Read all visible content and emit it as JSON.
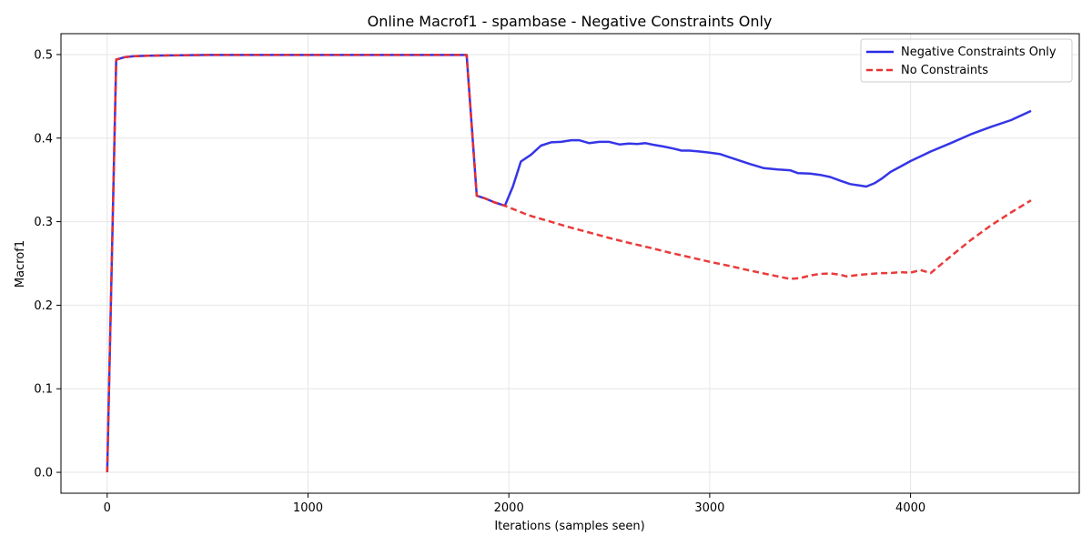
{
  "chart_data": {
    "type": "line",
    "title": "Online Macrof1 - spambase - Negative Constraints Only",
    "xlabel": "Iterations (samples seen)",
    "ylabel": "Macrof1",
    "xlim": [
      -230,
      4840
    ],
    "ylim": [
      -0.025,
      0.525
    ],
    "xticks": [
      0,
      1000,
      2000,
      3000,
      4000
    ],
    "xtick_labels": [
      "0",
      "1000",
      "2000",
      "3000",
      "4000"
    ],
    "yticks": [
      0.0,
      0.1,
      0.2,
      0.3,
      0.4,
      0.5
    ],
    "ytick_labels": [
      "0.0",
      "0.1",
      "0.2",
      "0.3",
      "0.4",
      "0.5"
    ],
    "grid": true,
    "legend_position": "top-right",
    "series": [
      {
        "name": "Negative Constraints Only",
        "color": "#2a2ae6",
        "style": "solid",
        "points": [
          [
            0,
            0.0
          ],
          [
            45,
            0.494
          ],
          [
            90,
            0.497
          ],
          [
            135,
            0.498
          ],
          [
            200,
            0.4985
          ],
          [
            300,
            0.499
          ],
          [
            500,
            0.4995
          ],
          [
            800,
            0.4995
          ],
          [
            1200,
            0.4995
          ],
          [
            1600,
            0.4995
          ],
          [
            1790,
            0.4995
          ],
          [
            1840,
            0.331
          ],
          [
            1880,
            0.328
          ],
          [
            1930,
            0.323
          ],
          [
            1980,
            0.319
          ],
          [
            2020,
            0.342
          ],
          [
            2060,
            0.372
          ],
          [
            2110,
            0.38
          ],
          [
            2160,
            0.391
          ],
          [
            2210,
            0.395
          ],
          [
            2260,
            0.3955
          ],
          [
            2310,
            0.3975
          ],
          [
            2350,
            0.3975
          ],
          [
            2400,
            0.394
          ],
          [
            2450,
            0.3955
          ],
          [
            2500,
            0.3955
          ],
          [
            2550,
            0.3925
          ],
          [
            2600,
            0.3935
          ],
          [
            2640,
            0.393
          ],
          [
            2680,
            0.394
          ],
          [
            2720,
            0.392
          ],
          [
            2770,
            0.39
          ],
          [
            2820,
            0.3875
          ],
          [
            2860,
            0.385
          ],
          [
            2900,
            0.385
          ],
          [
            2950,
            0.384
          ],
          [
            3000,
            0.3825
          ],
          [
            3050,
            0.381
          ],
          [
            3100,
            0.377
          ],
          [
            3150,
            0.373
          ],
          [
            3200,
            0.369
          ],
          [
            3270,
            0.364
          ],
          [
            3340,
            0.3625
          ],
          [
            3400,
            0.3615
          ],
          [
            3440,
            0.358
          ],
          [
            3500,
            0.3575
          ],
          [
            3550,
            0.356
          ],
          [
            3600,
            0.3535
          ],
          [
            3650,
            0.349
          ],
          [
            3700,
            0.345
          ],
          [
            3740,
            0.3435
          ],
          [
            3780,
            0.342
          ],
          [
            3820,
            0.346
          ],
          [
            3860,
            0.352
          ],
          [
            3900,
            0.3595
          ],
          [
            3950,
            0.366
          ],
          [
            4000,
            0.3725
          ],
          [
            4100,
            0.384
          ],
          [
            4200,
            0.394
          ],
          [
            4300,
            0.4045
          ],
          [
            4400,
            0.4135
          ],
          [
            4500,
            0.4215
          ],
          [
            4600,
            0.4325
          ]
        ]
      },
      {
        "name": "No Constraints",
        "color": "#e83030",
        "style": "dashed",
        "points": [
          [
            0,
            0.0
          ],
          [
            45,
            0.494
          ],
          [
            90,
            0.497
          ],
          [
            135,
            0.498
          ],
          [
            200,
            0.4985
          ],
          [
            300,
            0.499
          ],
          [
            500,
            0.4995
          ],
          [
            800,
            0.4995
          ],
          [
            1200,
            0.4995
          ],
          [
            1600,
            0.4995
          ],
          [
            1790,
            0.4995
          ],
          [
            1840,
            0.331
          ],
          [
            1880,
            0.328
          ],
          [
            1930,
            0.323
          ],
          [
            1980,
            0.319
          ],
          [
            2100,
            0.3075
          ],
          [
            2200,
            0.3005
          ],
          [
            2300,
            0.2935
          ],
          [
            2400,
            0.287
          ],
          [
            2500,
            0.2805
          ],
          [
            2600,
            0.2745
          ],
          [
            2700,
            0.269
          ],
          [
            2800,
            0.263
          ],
          [
            2900,
            0.2575
          ],
          [
            3000,
            0.252
          ],
          [
            3100,
            0.247
          ],
          [
            3200,
            0.2415
          ],
          [
            3300,
            0.2365
          ],
          [
            3400,
            0.2315
          ],
          [
            3450,
            0.2325
          ],
          [
            3500,
            0.2355
          ],
          [
            3550,
            0.2375
          ],
          [
            3600,
            0.238
          ],
          [
            3650,
            0.2365
          ],
          [
            3680,
            0.2345
          ],
          [
            3750,
            0.2365
          ],
          [
            3800,
            0.2375
          ],
          [
            3850,
            0.2385
          ],
          [
            3900,
            0.2385
          ],
          [
            3950,
            0.2395
          ],
          [
            4000,
            0.239
          ],
          [
            4050,
            0.242
          ],
          [
            4100,
            0.2385
          ],
          [
            4200,
            0.2585
          ],
          [
            4300,
            0.278
          ],
          [
            4400,
            0.2955
          ],
          [
            4500,
            0.311
          ],
          [
            4600,
            0.3255
          ]
        ]
      }
    ]
  }
}
